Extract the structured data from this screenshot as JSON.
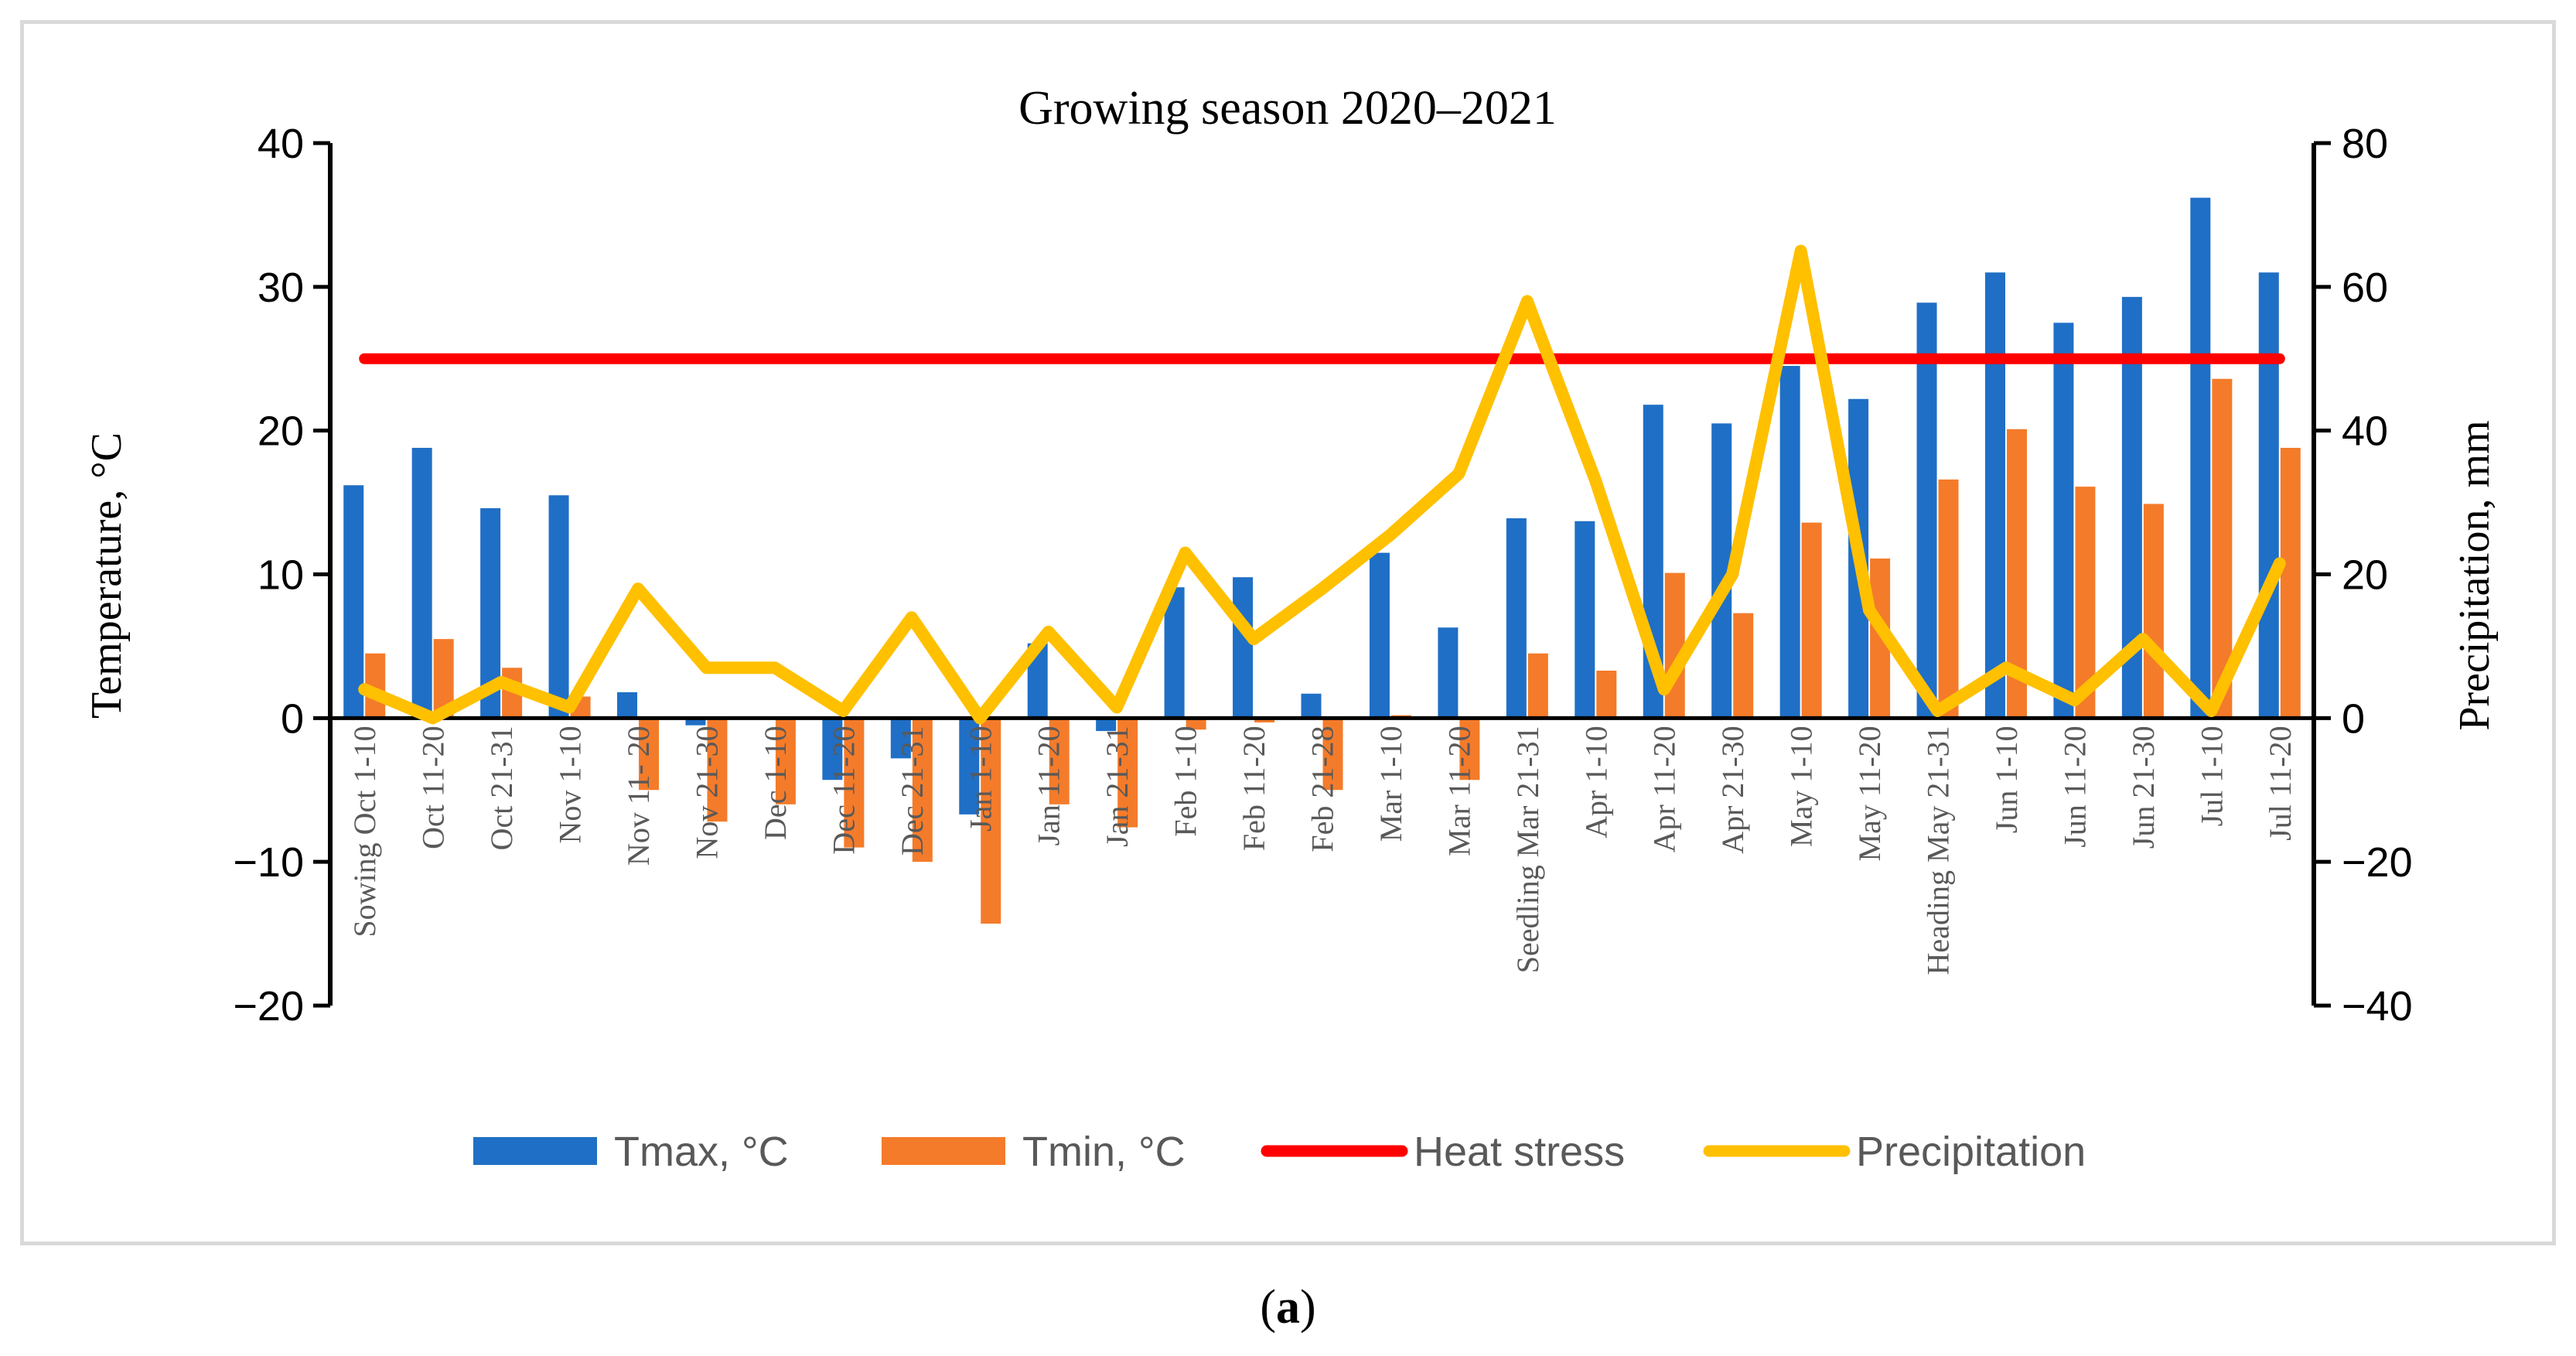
{
  "chart_data": {
    "type": "bar",
    "title": "Growing season 2020–2021",
    "ylabel": "Temperature, °C",
    "y2label": "Precipitation, mm",
    "ylim": [
      -20,
      40
    ],
    "y2lim": [
      -40,
      80
    ],
    "yticks": [
      "40",
      "30",
      "20",
      "10",
      "0",
      "−10",
      "−20"
    ],
    "y2ticks": [
      "80",
      "60",
      "40",
      "20",
      "0",
      "−20",
      "−40"
    ],
    "categories": [
      "Sowing Oct 1-10",
      "Oct 11-20",
      "Oct 21-31",
      "Nov 1-10",
      "Nov 11- 20",
      "Nov 21-30",
      "Dec 1-10",
      "Dec 11-20",
      "Dec 21-31",
      "Jan 1-10",
      "Jan 11-20",
      "Jan 21-31",
      "Feb 1-10",
      "Feb 11-20",
      "Feb 21-28",
      "Mar 1-10",
      "Mar 11-20",
      "Seedling Mar 21-31",
      "Apr 1-10",
      "Apr 11-20",
      "Apr 21-30",
      "May 1-10",
      "May 11-20",
      "Heading May 21-31",
      "Jun 1-10",
      "Jun 11-20",
      "Jun 21-30",
      "Jul 1-10",
      "Jul 11-20"
    ],
    "series": [
      {
        "name": "Tmax, °C",
        "type": "bar",
        "axis": "left",
        "color": "#1f6fc6",
        "values": [
          16.2,
          18.8,
          14.6,
          15.5,
          1.8,
          -0.5,
          0.0,
          -4.3,
          -2.8,
          -6.7,
          5.2,
          -0.9,
          9.1,
          9.8,
          1.7,
          11.5,
          6.3,
          13.9,
          13.7,
          21.8,
          20.5,
          24.5,
          22.2,
          28.9,
          31.0,
          27.5,
          29.3,
          36.2,
          31.0
        ]
      },
      {
        "name": "Tmin, °C",
        "type": "bar",
        "axis": "left",
        "color": "#f47b2a",
        "values": [
          4.5,
          5.5,
          3.5,
          1.5,
          -5.0,
          -7.2,
          -6.0,
          -9.0,
          -10.0,
          -14.3,
          -6.0,
          -7.6,
          -0.8,
          -0.3,
          -5.0,
          0.2,
          -4.3,
          4.5,
          3.3,
          10.1,
          7.3,
          13.6,
          11.1,
          16.6,
          20.1,
          16.1,
          14.9,
          23.6,
          18.8
        ]
      },
      {
        "name": "Heat stress",
        "type": "line",
        "axis": "left",
        "color": "#ff0000",
        "values": [
          25,
          25,
          25,
          25,
          25,
          25,
          25,
          25,
          25,
          25,
          25,
          25,
          25,
          25,
          25,
          25,
          25,
          25,
          25,
          25,
          25,
          25,
          25,
          25,
          25,
          25,
          25,
          25,
          25
        ]
      },
      {
        "name": "Precipitation",
        "type": "line",
        "axis": "right",
        "color": "#ffc000",
        "values": [
          4,
          0,
          5,
          1.5,
          18,
          7,
          7,
          1,
          14,
          0,
          12,
          1.5,
          23,
          11,
          18,
          25.5,
          34,
          58,
          33,
          4,
          20,
          65,
          15,
          1,
          7,
          2.5,
          11,
          1,
          21.5
        ]
      }
    ],
    "legend": "bottom",
    "grid": false
  },
  "panel_label": "(a)"
}
